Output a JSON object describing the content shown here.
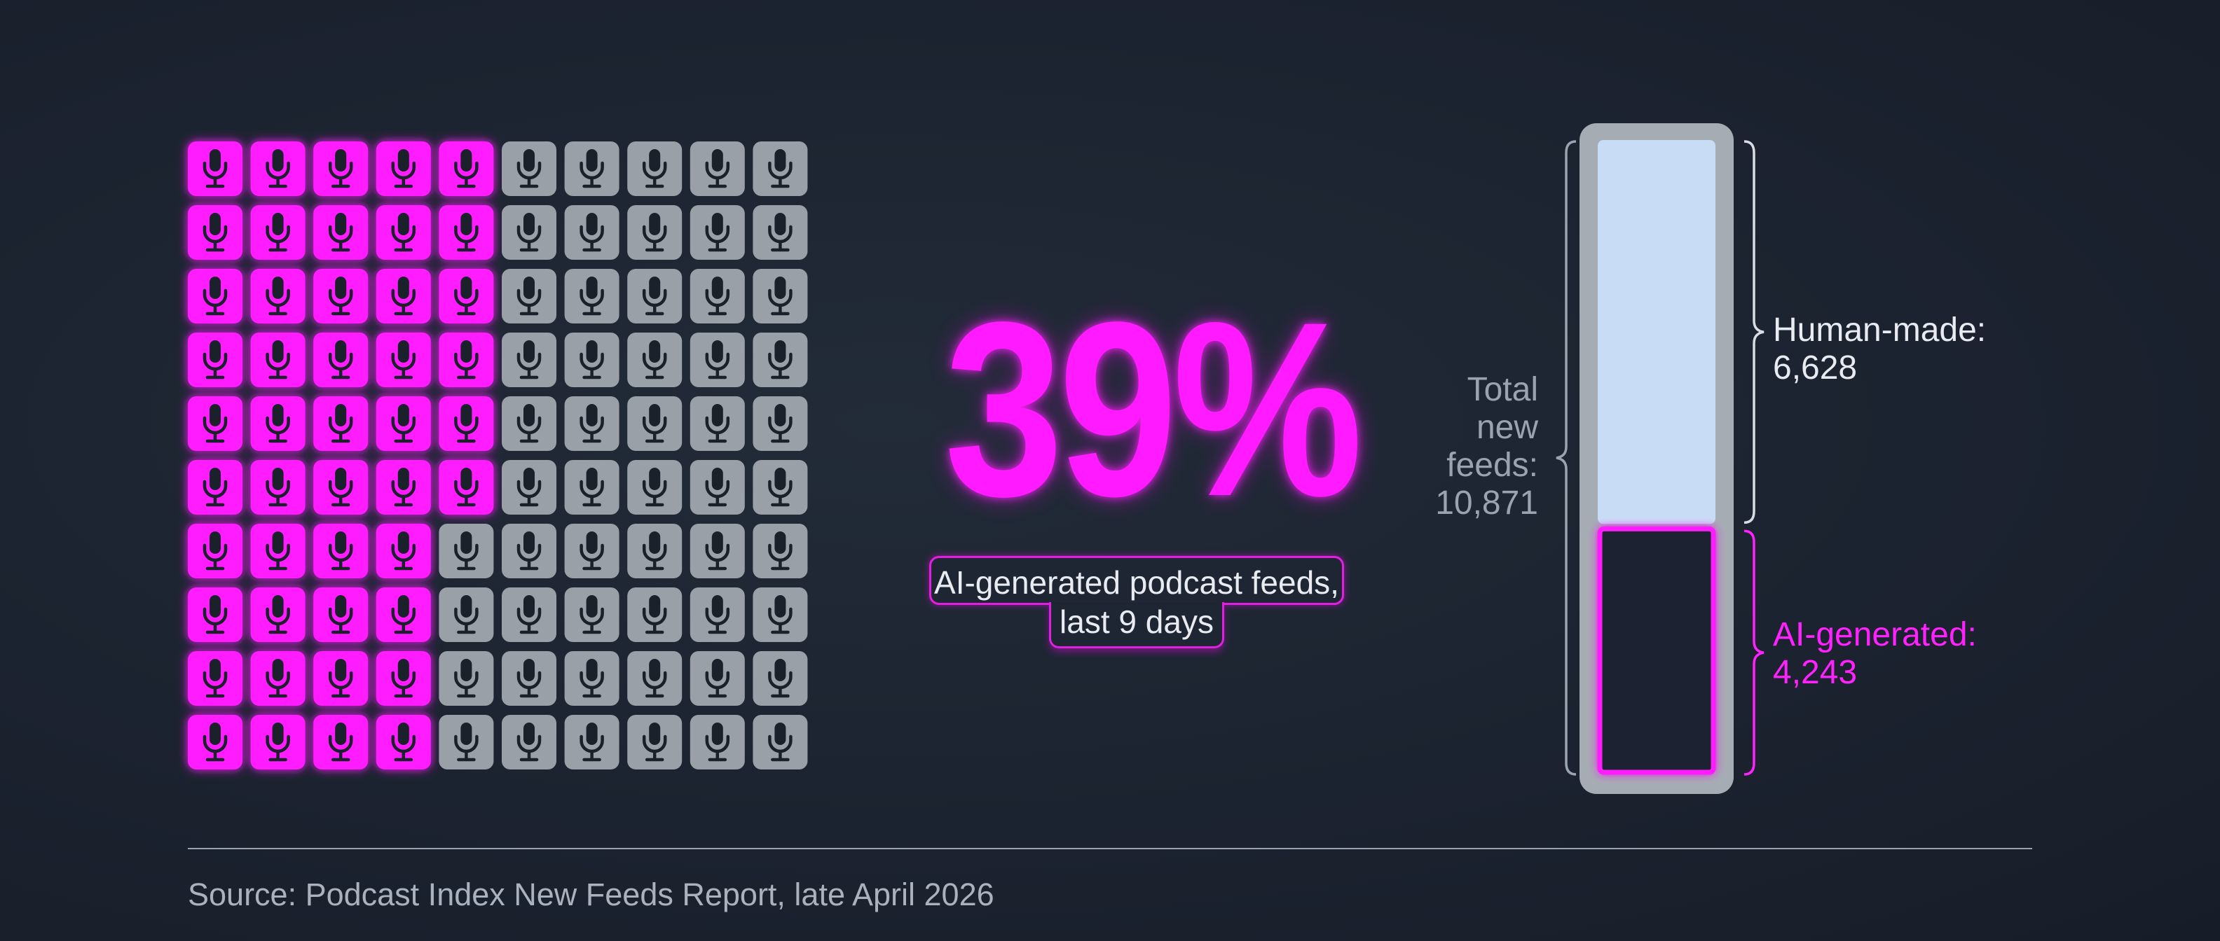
{
  "chart_data": [
    {
      "type": "waffle",
      "total_units": 100,
      "highlighted_units": 39,
      "colors": {
        "highlight": "#ff1aff",
        "base": "#9aa0a8",
        "icon": "#1b212b"
      },
      "icon": "microphone-icon"
    },
    {
      "type": "stacked-bar",
      "orientation": "vertical",
      "total": {
        "label": "Total new feeds:",
        "value": "10,871"
      },
      "segments": [
        {
          "label": "Human-made:",
          "value": "6,628",
          "amount": 6628,
          "color": "#c9dcf6"
        },
        {
          "label": "AI-generated:",
          "value": "4,243",
          "amount": 4243,
          "color": "#ff1aff"
        }
      ]
    }
  ],
  "headline": {
    "value": "39%",
    "subtitle_line1": "AI-generated podcast feeds,",
    "subtitle_line2": "last 9 days"
  },
  "labels": {
    "total_line1": "Total",
    "total_line2": "new",
    "total_line3": "feeds:",
    "total_line4": "10,871",
    "human_label": "Human-made:",
    "human_value": "6,628",
    "ai_label": "AI-generated:",
    "ai_value": "4,243"
  },
  "source": "Source: Podcast Index New Feeds Report, late April 2026"
}
